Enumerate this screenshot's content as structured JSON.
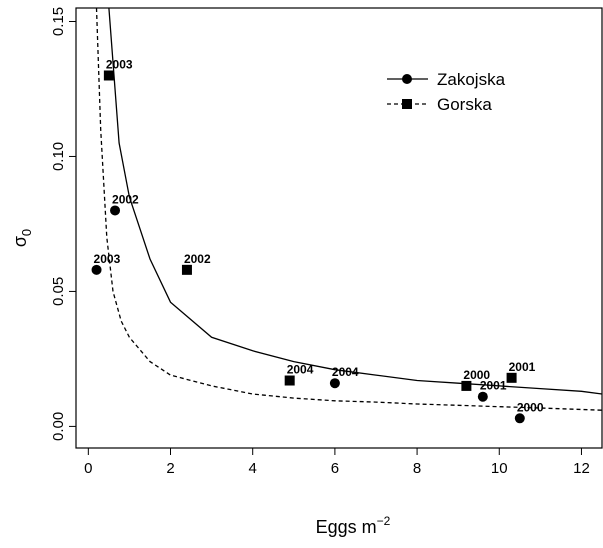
{
  "chart_data": {
    "type": "scatter",
    "xlabel_base": "Eggs m",
    "xlabel_exp": "−2",
    "ylabel_base": "σ",
    "ylabel_sub": "0",
    "xlim": [
      -0.3,
      12.5
    ],
    "ylim": [
      -0.008,
      0.155
    ],
    "x_ticks": [
      0,
      2,
      4,
      6,
      8,
      10,
      12
    ],
    "x_tick_labels": [
      "0",
      "2",
      "4",
      "6",
      "8",
      "10",
      "12"
    ],
    "y_ticks": [
      0.0,
      0.05,
      0.1,
      0.15
    ],
    "y_tick_labels": [
      "0.00",
      "0.05",
      "0.10",
      "0.15"
    ],
    "grid": false,
    "legend_position": "top-right",
    "series": [
      {
        "name": "Zakojska",
        "marker": "circle",
        "line": "solid",
        "fit_curve": {
          "x": [
            0.5,
            0.75,
            1.0,
            1.5,
            2.0,
            3.0,
            4.0,
            5.0,
            6.0,
            7.0,
            8.0,
            9.0,
            10.0,
            11.0,
            12.0,
            12.5
          ],
          "y": [
            0.155,
            0.105,
            0.085,
            0.062,
            0.046,
            0.033,
            0.028,
            0.024,
            0.021,
            0.019,
            0.017,
            0.016,
            0.015,
            0.014,
            0.013,
            0.012
          ]
        },
        "points": [
          {
            "x": 0.2,
            "y": 0.058,
            "label": "2003"
          },
          {
            "x": 0.65,
            "y": 0.08,
            "label": "2002"
          },
          {
            "x": 6.0,
            "y": 0.016,
            "label": "2004"
          },
          {
            "x": 9.6,
            "y": 0.011,
            "label": "2001"
          },
          {
            "x": 10.5,
            "y": 0.003,
            "label": "2000"
          }
        ]
      },
      {
        "name": "Gorska",
        "marker": "square",
        "line": "dashed",
        "fit_curve": {
          "x": [
            0.2,
            0.3,
            0.45,
            0.6,
            0.8,
            1.0,
            1.5,
            2.0,
            3.0,
            4.0,
            5.0,
            6.0,
            7.0,
            8.0,
            9.0,
            10.0,
            11.0,
            12.5
          ],
          "y": [
            0.155,
            0.11,
            0.07,
            0.05,
            0.039,
            0.033,
            0.024,
            0.019,
            0.015,
            0.012,
            0.0105,
            0.0095,
            0.009,
            0.0083,
            0.0078,
            0.0073,
            0.0068,
            0.006
          ]
        },
        "points": [
          {
            "x": 0.5,
            "y": 0.13,
            "label": "2003"
          },
          {
            "x": 2.4,
            "y": 0.058,
            "label": "2002"
          },
          {
            "x": 4.9,
            "y": 0.017,
            "label": "2004"
          },
          {
            "x": 9.2,
            "y": 0.015,
            "label": "2000"
          },
          {
            "x": 10.3,
            "y": 0.018,
            "label": "2001"
          }
        ]
      }
    ]
  }
}
